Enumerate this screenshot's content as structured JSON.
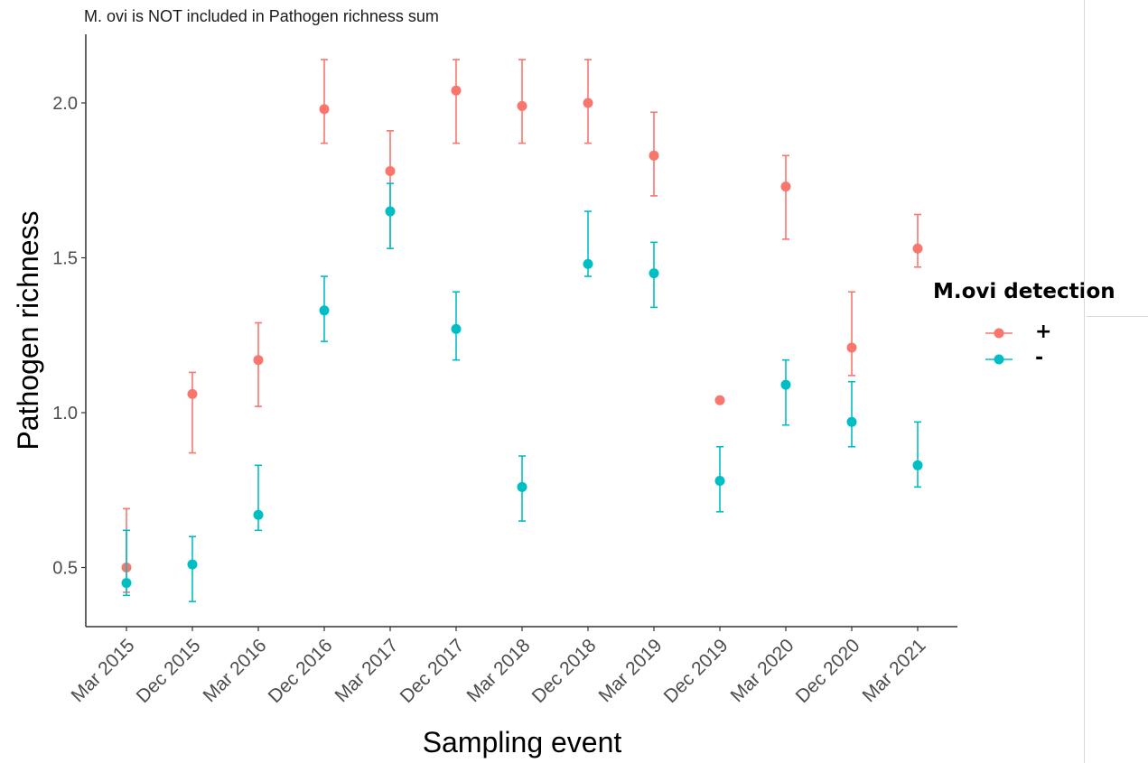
{
  "chart_data": {
    "type": "scatter",
    "subtitle": "M. ovi is NOT included in Pathogen richness sum",
    "xlabel": "Sampling event",
    "ylabel": "Pathogen richness",
    "categories": [
      "Mar 2015",
      "Dec 2015",
      "Mar 2016",
      "Dec 2016",
      "Mar 2017",
      "Dec 2017",
      "Mar 2018",
      "Dec 2018",
      "Mar 2019",
      "Dec 2019",
      "Mar 2020",
      "Dec 2020",
      "Mar 2021"
    ],
    "yticks": [
      "0.5",
      "1.0",
      "1.5",
      "2.0"
    ],
    "ytick_values": [
      0.5,
      1.0,
      1.5,
      2.0
    ],
    "ylim": [
      0.3,
      2.22
    ],
    "grid": false,
    "legend": {
      "title": "M.ovi detection",
      "position": "right"
    },
    "series": [
      {
        "name": "+",
        "color": "#F8766D",
        "values": [
          0.5,
          1.06,
          1.17,
          1.98,
          1.78,
          2.04,
          1.99,
          2.0,
          1.83,
          1.04,
          1.73,
          1.21,
          1.53
        ],
        "lower": [
          0.42,
          0.87,
          1.02,
          1.87,
          1.53,
          1.87,
          1.87,
          1.87,
          1.7,
          null,
          1.56,
          1.12,
          1.47
        ],
        "upper": [
          0.69,
          1.13,
          1.29,
          2.14,
          1.91,
          2.14,
          2.14,
          2.14,
          1.97,
          null,
          1.83,
          1.39,
          1.64
        ]
      },
      {
        "name": "-",
        "color": "#00BFC4",
        "values": [
          0.45,
          0.51,
          0.67,
          1.33,
          1.65,
          1.27,
          0.76,
          1.48,
          1.45,
          0.78,
          1.09,
          0.97,
          0.83
        ],
        "lower": [
          0.41,
          0.39,
          0.62,
          1.23,
          1.53,
          1.17,
          0.65,
          1.44,
          1.34,
          0.68,
          0.96,
          0.89,
          0.76
        ],
        "upper": [
          0.62,
          0.6,
          0.83,
          1.44,
          1.74,
          1.39,
          0.86,
          1.65,
          1.55,
          0.89,
          1.17,
          1.1,
          0.97
        ]
      }
    ]
  }
}
